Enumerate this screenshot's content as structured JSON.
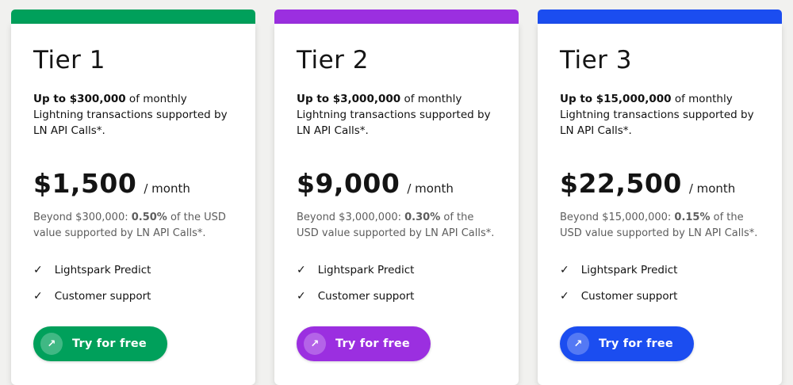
{
  "icons": {
    "check": "✓",
    "arrow": "↗"
  },
  "tiers": [
    {
      "name": "Tier 1",
      "accent": "#00a05b",
      "intro": {
        "bold": "Up to $300,000",
        "rest": " of monthly Lightning transactions supported by LN API Calls*."
      },
      "price": {
        "amount": "$1,500",
        "suffix": "/ month"
      },
      "overage": {
        "pre": "Beyond $300,000: ",
        "bold": "0.50%",
        "post": " of the USD value supported by LN API Calls*."
      },
      "features": [
        "Lightspark Predict",
        "Customer support"
      ],
      "cta_label": "Try for free"
    },
    {
      "name": "Tier 2",
      "accent": "#9b2fe0",
      "intro": {
        "bold": "Up to $3,000,000",
        "rest": " of monthly Lightning transactions supported by LN API Calls*."
      },
      "price": {
        "amount": "$9,000",
        "suffix": "/ month"
      },
      "overage": {
        "pre": "Beyond $3,000,000: ",
        "bold": "0.30%",
        "post": " of the USD value supported by LN API Calls*."
      },
      "features": [
        "Lightspark Predict",
        "Customer support"
      ],
      "cta_label": "Try for free"
    },
    {
      "name": "Tier 3",
      "accent": "#1b4df0",
      "intro": {
        "bold": "Up to $15,000,000",
        "rest": " of monthly Lightning transactions supported by LN API Calls*."
      },
      "price": {
        "amount": "$22,500",
        "suffix": "/ month"
      },
      "overage": {
        "pre": "Beyond $15,000,000: ",
        "bold": "0.15%",
        "post": " of the USD value supported by LN API Calls*."
      },
      "features": [
        "Lightspark Predict",
        "Customer support"
      ],
      "cta_label": "Try for free"
    }
  ]
}
